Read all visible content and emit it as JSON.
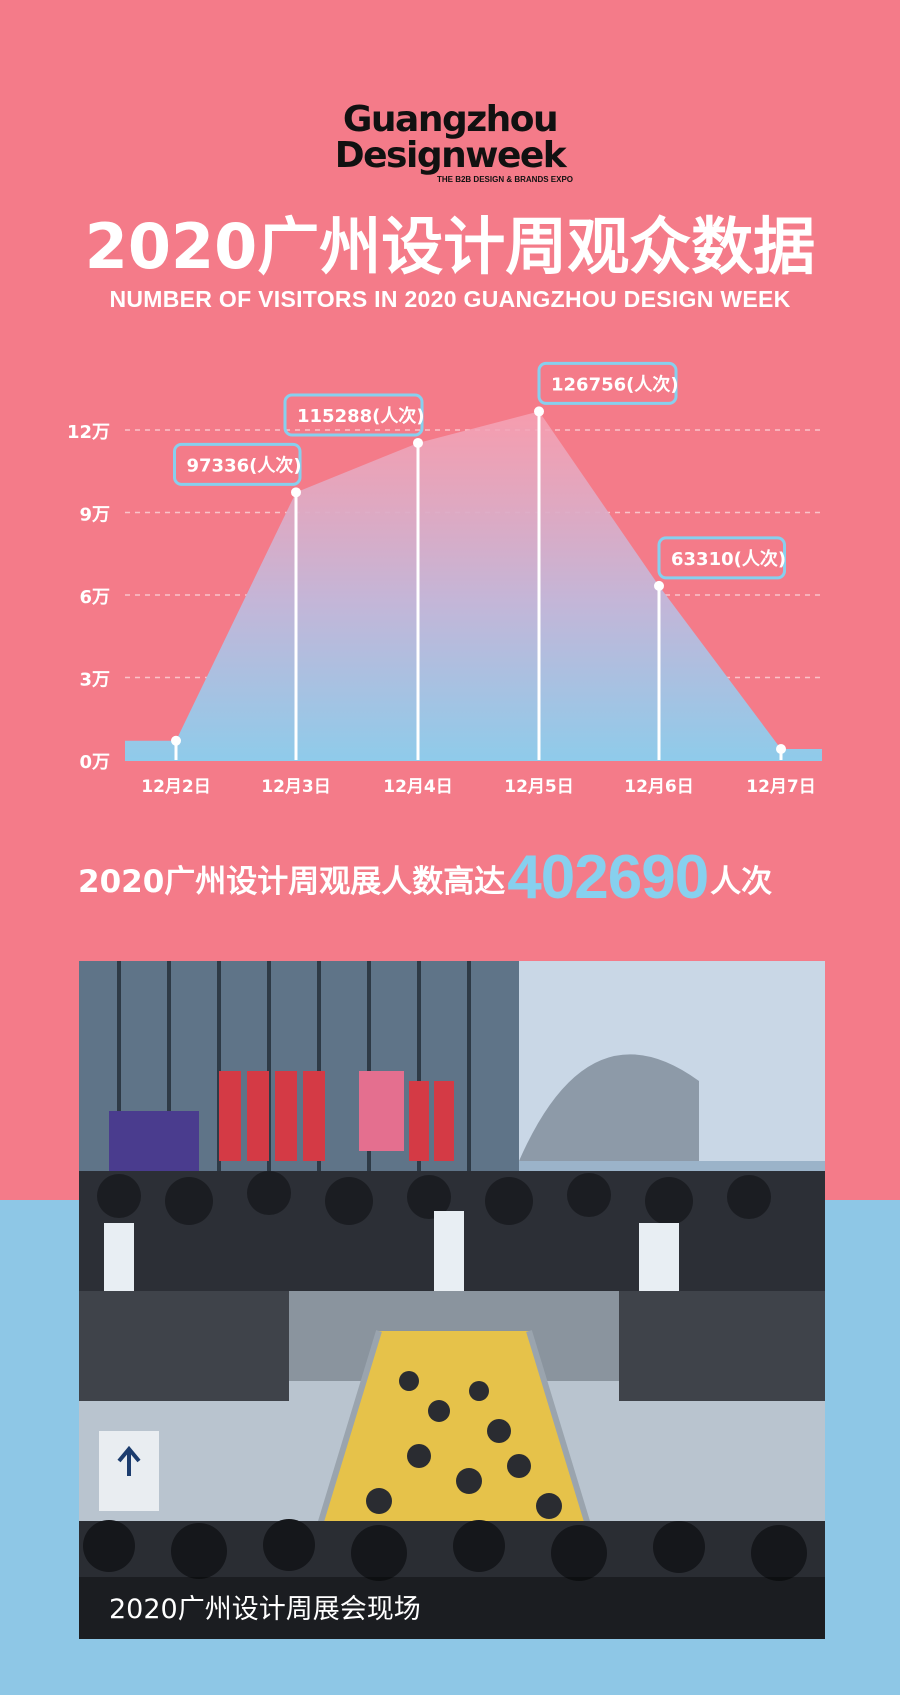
{
  "logo": {
    "line1": "Guangzhou",
    "line2": "Designweek",
    "tagline": "THE B2B DESIGN & BRANDS EXPO"
  },
  "title_cn": "2020广州设计周观众数据",
  "title_en": "NUMBER OF VISITORS IN 2020 GUANGZHOU DESIGN WEEK",
  "total": {
    "prefix": "2020广州设计周观展人数高达",
    "number": "402690",
    "suffix": "人次"
  },
  "photo": {
    "caption": "2020广州设计周展会现场"
  },
  "colors": {
    "background_top": "#f47b89",
    "background_bottom": "#8ec7e6",
    "accent_blue": "#87d0ee"
  },
  "chart_data": {
    "type": "area",
    "categories": [
      "12月2日",
      "12月3日",
      "12月4日",
      "12月5日",
      "12月6日",
      "12月7日"
    ],
    "values": [
      7000,
      97336,
      115288,
      126756,
      63310,
      4000
    ],
    "y_ticks": [
      {
        "value": 0,
        "label": "0万"
      },
      {
        "value": 30000,
        "label": "3万"
      },
      {
        "value": 60000,
        "label": "6万"
      },
      {
        "value": 90000,
        "label": "9万"
      },
      {
        "value": 120000,
        "label": "12万"
      }
    ],
    "ylim": [
      0,
      120000
    ],
    "annotations": [
      {
        "index": 1,
        "text": "97336(人次)"
      },
      {
        "index": 2,
        "text": "115288(人次)"
      },
      {
        "index": 3,
        "text": "126756(人次)"
      },
      {
        "index": 4,
        "text": "63310(人次)"
      }
    ],
    "grid": true
  }
}
